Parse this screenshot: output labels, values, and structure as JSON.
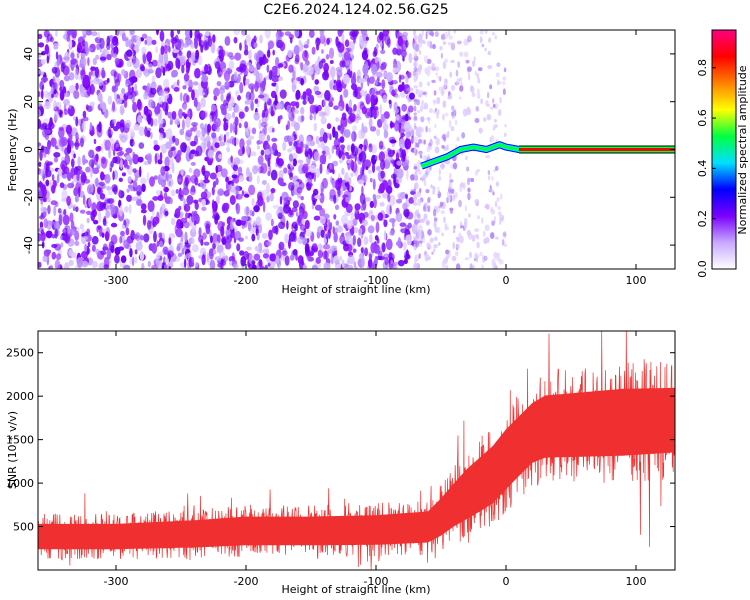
{
  "title": "C2E6.2024.124.02.56.G25",
  "chart_data": [
    {
      "type": "heatmap",
      "xlabel": "Height of straight line (km)",
      "ylabel": "Frequency (Hz)",
      "xlim": [
        -360,
        130
      ],
      "ylim": [
        -50,
        50
      ],
      "xticks": [
        -300,
        -200,
        -100,
        0,
        100
      ],
      "yticks": [
        -40,
        -20,
        0,
        20,
        40
      ],
      "colorbar": {
        "label": "Normalized spectral amplitude",
        "range": [
          0,
          0.95
        ],
        "ticks": [
          "0.0",
          "0.2",
          "0.4",
          "0.6",
          "0.8"
        ],
        "colors": [
          "#ffffff",
          "#c8a8ff",
          "#7a00ff",
          "#0000ff",
          "#00e0ff",
          "#00ff40",
          "#ffff00",
          "#ff8000",
          "#ff0000",
          "#ff0080"
        ]
      },
      "features": {
        "noise_region_x": [
          -360,
          -70
        ],
        "noise_fade_x": [
          -70,
          0
        ],
        "tone_start_x": -70,
        "tone_freq_hz": 0,
        "tone_track": [
          [
            -65,
            -7
          ],
          [
            -55,
            -5
          ],
          [
            -45,
            -3
          ],
          [
            -35,
            0
          ],
          [
            -25,
            1
          ],
          [
            -15,
            0
          ],
          [
            -5,
            2
          ],
          [
            0,
            1
          ],
          [
            10,
            0
          ],
          [
            130,
            0
          ]
        ]
      }
    },
    {
      "type": "line",
      "xlabel": "Height of straight line (km)",
      "ylabel": "SNR (10 * v/v)",
      "xlim": [
        -360,
        130
      ],
      "ylim": [
        0,
        2750
      ],
      "xticks": [
        -300,
        -200,
        -100,
        0,
        100
      ],
      "yticks": [
        500,
        1000,
        1500,
        2000,
        2500
      ],
      "color": "#f03030",
      "envelope": [
        {
          "x": -360,
          "low": 120,
          "high": 650
        },
        {
          "x": -300,
          "low": 120,
          "high": 650
        },
        {
          "x": -240,
          "low": 130,
          "high": 700
        },
        {
          "x": -200,
          "low": 150,
          "high": 750
        },
        {
          "x": -150,
          "low": 150,
          "high": 750
        },
        {
          "x": -100,
          "low": 150,
          "high": 770
        },
        {
          "x": -60,
          "low": 170,
          "high": 820
        },
        {
          "x": -50,
          "low": 220,
          "high": 1000
        },
        {
          "x": -40,
          "low": 300,
          "high": 1200
        },
        {
          "x": -30,
          "low": 350,
          "high": 1400
        },
        {
          "x": -20,
          "low": 420,
          "high": 1550
        },
        {
          "x": -10,
          "low": 500,
          "high": 1700
        },
        {
          "x": 0,
          "low": 650,
          "high": 1900
        },
        {
          "x": 10,
          "low": 800,
          "high": 2050
        },
        {
          "x": 20,
          "low": 950,
          "high": 2200
        },
        {
          "x": 30,
          "low": 1000,
          "high": 2300
        },
        {
          "x": 60,
          "low": 1000,
          "high": 2350
        },
        {
          "x": 90,
          "low": 1000,
          "high": 2400
        },
        {
          "x": 130,
          "low": 1050,
          "high": 2400
        }
      ]
    }
  ]
}
